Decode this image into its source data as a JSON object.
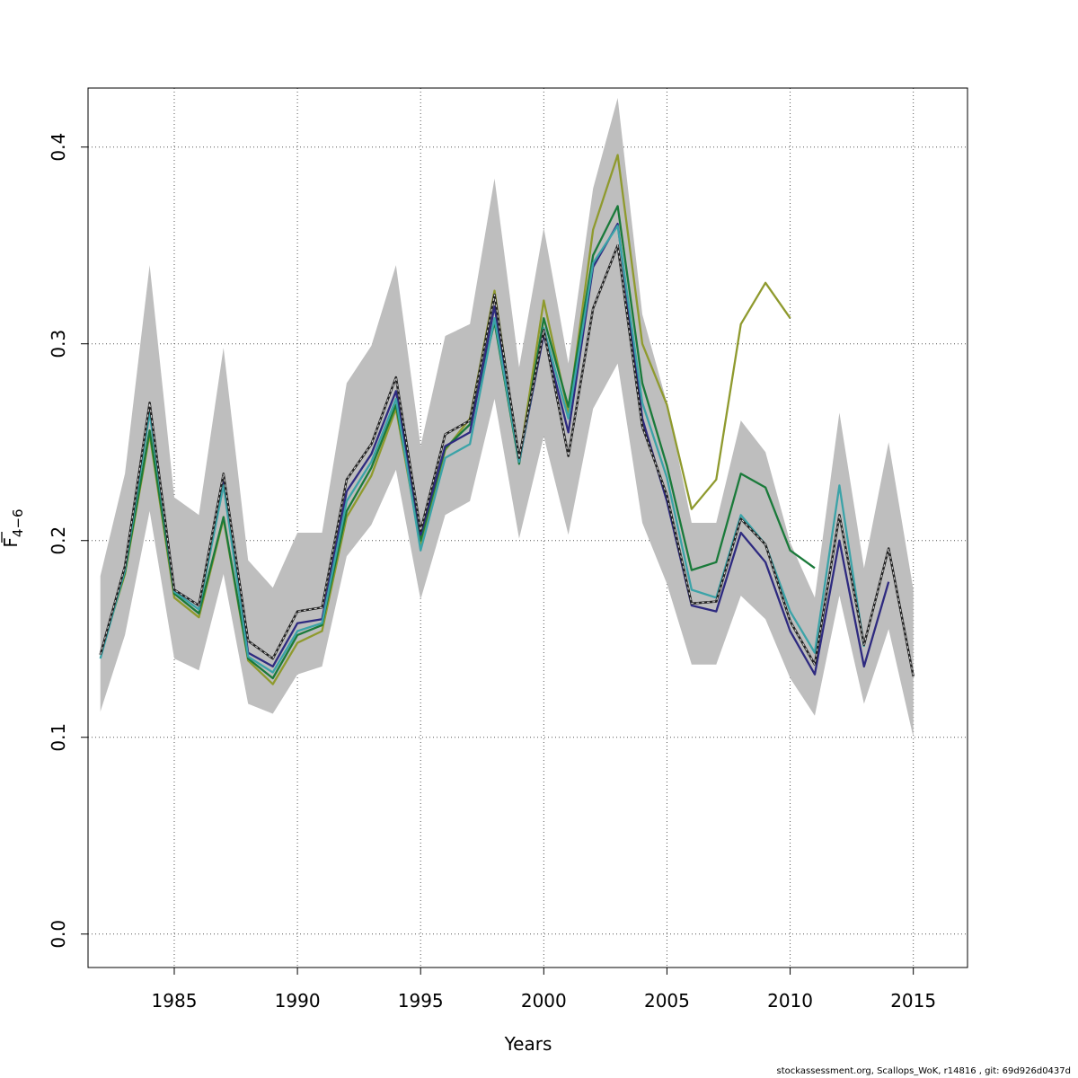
{
  "footer": "stockassessment.org, Scallops_WoK, r14816 , git: 69d926d0437d",
  "chart_data": {
    "type": "line",
    "xlabel": "Years",
    "ylabel": "F",
    "ylabel_sub": "4−6",
    "xlim": [
      1981.5,
      2017.2
    ],
    "ylim": [
      -0.017,
      0.43
    ],
    "xticks": [
      1985,
      1990,
      1995,
      2000,
      2005,
      2010,
      2015
    ],
    "yticks": [
      0.0,
      0.1,
      0.2,
      0.3,
      0.4
    ],
    "ytick_labels": [
      "0.0",
      "0.1",
      "0.2",
      "0.3",
      "0.4"
    ],
    "grid": true,
    "band_color": "#bebebe",
    "band": {
      "x": [
        1982,
        1983,
        1984,
        1985,
        1986,
        1987,
        1988,
        1989,
        1990,
        1991,
        1992,
        1993,
        1994,
        1995,
        1996,
        1997,
        1998,
        1999,
        2000,
        2001,
        2002,
        2003,
        2004,
        2005,
        2006,
        2007,
        2008,
        2009,
        2010,
        2011,
        2012,
        2013,
        2014,
        2015
      ],
      "upper": [
        0.182,
        0.234,
        0.34,
        0.222,
        0.213,
        0.298,
        0.19,
        0.176,
        0.204,
        0.204,
        0.28,
        0.299,
        0.34,
        0.248,
        0.304,
        0.31,
        0.384,
        0.288,
        0.359,
        0.29,
        0.379,
        0.425,
        0.315,
        0.27,
        0.209,
        0.209,
        0.261,
        0.245,
        0.199,
        0.171,
        0.265,
        0.186,
        0.25,
        0.175
      ],
      "lower": [
        0.113,
        0.152,
        0.215,
        0.14,
        0.134,
        0.183,
        0.117,
        0.112,
        0.132,
        0.136,
        0.192,
        0.208,
        0.236,
        0.17,
        0.213,
        0.22,
        0.272,
        0.201,
        0.253,
        0.203,
        0.267,
        0.29,
        0.209,
        0.178,
        0.137,
        0.137,
        0.172,
        0.16,
        0.13,
        0.111,
        0.172,
        0.117,
        0.155,
        0.1
      ]
    },
    "series": [
      {
        "color": "#8f9a2e",
        "x": [
          1982,
          1983,
          1984,
          1985,
          1986,
          1987,
          1988,
          1989,
          1990,
          1991,
          1992,
          1993,
          1994,
          1995,
          1996,
          1997,
          1998,
          1999,
          2000,
          2001,
          2002,
          2003,
          2004,
          2005,
          2006,
          2007,
          2008,
          2009,
          2010
        ],
        "values": [
          0.142,
          0.183,
          0.254,
          0.171,
          0.161,
          0.211,
          0.139,
          0.127,
          0.148,
          0.154,
          0.212,
          0.233,
          0.267,
          0.198,
          0.246,
          0.262,
          0.327,
          0.24,
          0.322,
          0.265,
          0.358,
          0.396,
          0.3,
          0.269,
          0.216,
          0.231,
          0.31,
          0.331,
          0.313
        ]
      },
      {
        "color": "#1a7a3a",
        "x": [
          1982,
          1983,
          1984,
          1985,
          1986,
          1987,
          1988,
          1989,
          1990,
          1991,
          1992,
          1993,
          1994,
          1995,
          1996,
          1997,
          1998,
          1999,
          2000,
          2001,
          2002,
          2003,
          2004,
          2005,
          2006,
          2007,
          2008,
          2009,
          2010,
          2011
        ],
        "values": [
          0.142,
          0.184,
          0.256,
          0.173,
          0.163,
          0.212,
          0.14,
          0.13,
          0.152,
          0.157,
          0.215,
          0.237,
          0.269,
          0.2,
          0.247,
          0.259,
          0.311,
          0.239,
          0.313,
          0.268,
          0.345,
          0.37,
          0.28,
          0.238,
          0.185,
          0.189,
          0.234,
          0.227,
          0.195,
          0.186
        ]
      },
      {
        "color": "#2e2a80",
        "x": [
          1982,
          1983,
          1984,
          1985,
          1986,
          1987,
          1988,
          1989,
          1990,
          1991,
          1992,
          1993,
          1994,
          1995,
          1996,
          1997,
          1998,
          1999,
          2000,
          2001,
          2002,
          2003,
          2004,
          2005,
          2006,
          2007,
          2008,
          2009,
          2010,
          2011,
          2012,
          2013,
          2014
        ],
        "values": [
          0.142,
          0.186,
          0.268,
          0.175,
          0.167,
          0.231,
          0.143,
          0.136,
          0.158,
          0.16,
          0.225,
          0.244,
          0.276,
          0.203,
          0.248,
          0.255,
          0.319,
          0.24,
          0.305,
          0.255,
          0.339,
          0.361,
          0.262,
          0.22,
          0.167,
          0.164,
          0.204,
          0.189,
          0.154,
          0.132,
          0.2,
          0.136,
          0.179
        ]
      },
      {
        "color": "#3ba3a8",
        "x": [
          1982,
          1983,
          1984,
          1985,
          1986,
          1987,
          1988,
          1989,
          1990,
          1991,
          1992,
          1993,
          1994,
          1995,
          1996,
          1997,
          1998,
          1999,
          2000,
          2001,
          2002,
          2003,
          2004,
          2005,
          2006,
          2007,
          2008,
          2009,
          2010,
          2011,
          2012,
          2013
        ],
        "values": [
          0.14,
          0.185,
          0.265,
          0.174,
          0.165,
          0.228,
          0.141,
          0.133,
          0.154,
          0.158,
          0.22,
          0.24,
          0.272,
          0.195,
          0.242,
          0.249,
          0.313,
          0.24,
          0.308,
          0.262,
          0.341,
          0.36,
          0.27,
          0.232,
          0.175,
          0.171,
          0.213,
          0.198,
          0.164,
          0.143,
          0.228,
          0.146
        ]
      },
      {
        "color": "#222222",
        "dashed": true,
        "x": [
          1982,
          1983,
          1984,
          1985,
          1986,
          1987,
          1988,
          1989,
          1990,
          1991,
          1992,
          1993,
          1994,
          1995,
          1996,
          1997,
          1998,
          1999,
          2000,
          2001,
          2002,
          2003,
          2004,
          2005,
          2006,
          2007,
          2008,
          2009,
          2010,
          2011,
          2012,
          2013,
          2014,
          2015
        ],
        "values": [
          0.142,
          0.187,
          0.27,
          0.175,
          0.167,
          0.234,
          0.149,
          0.14,
          0.164,
          0.166,
          0.231,
          0.249,
          0.283,
          0.205,
          0.254,
          0.261,
          0.325,
          0.242,
          0.307,
          0.243,
          0.318,
          0.35,
          0.258,
          0.223,
          0.168,
          0.169,
          0.211,
          0.198,
          0.159,
          0.137,
          0.213,
          0.147,
          0.196,
          0.131
        ]
      }
    ]
  }
}
